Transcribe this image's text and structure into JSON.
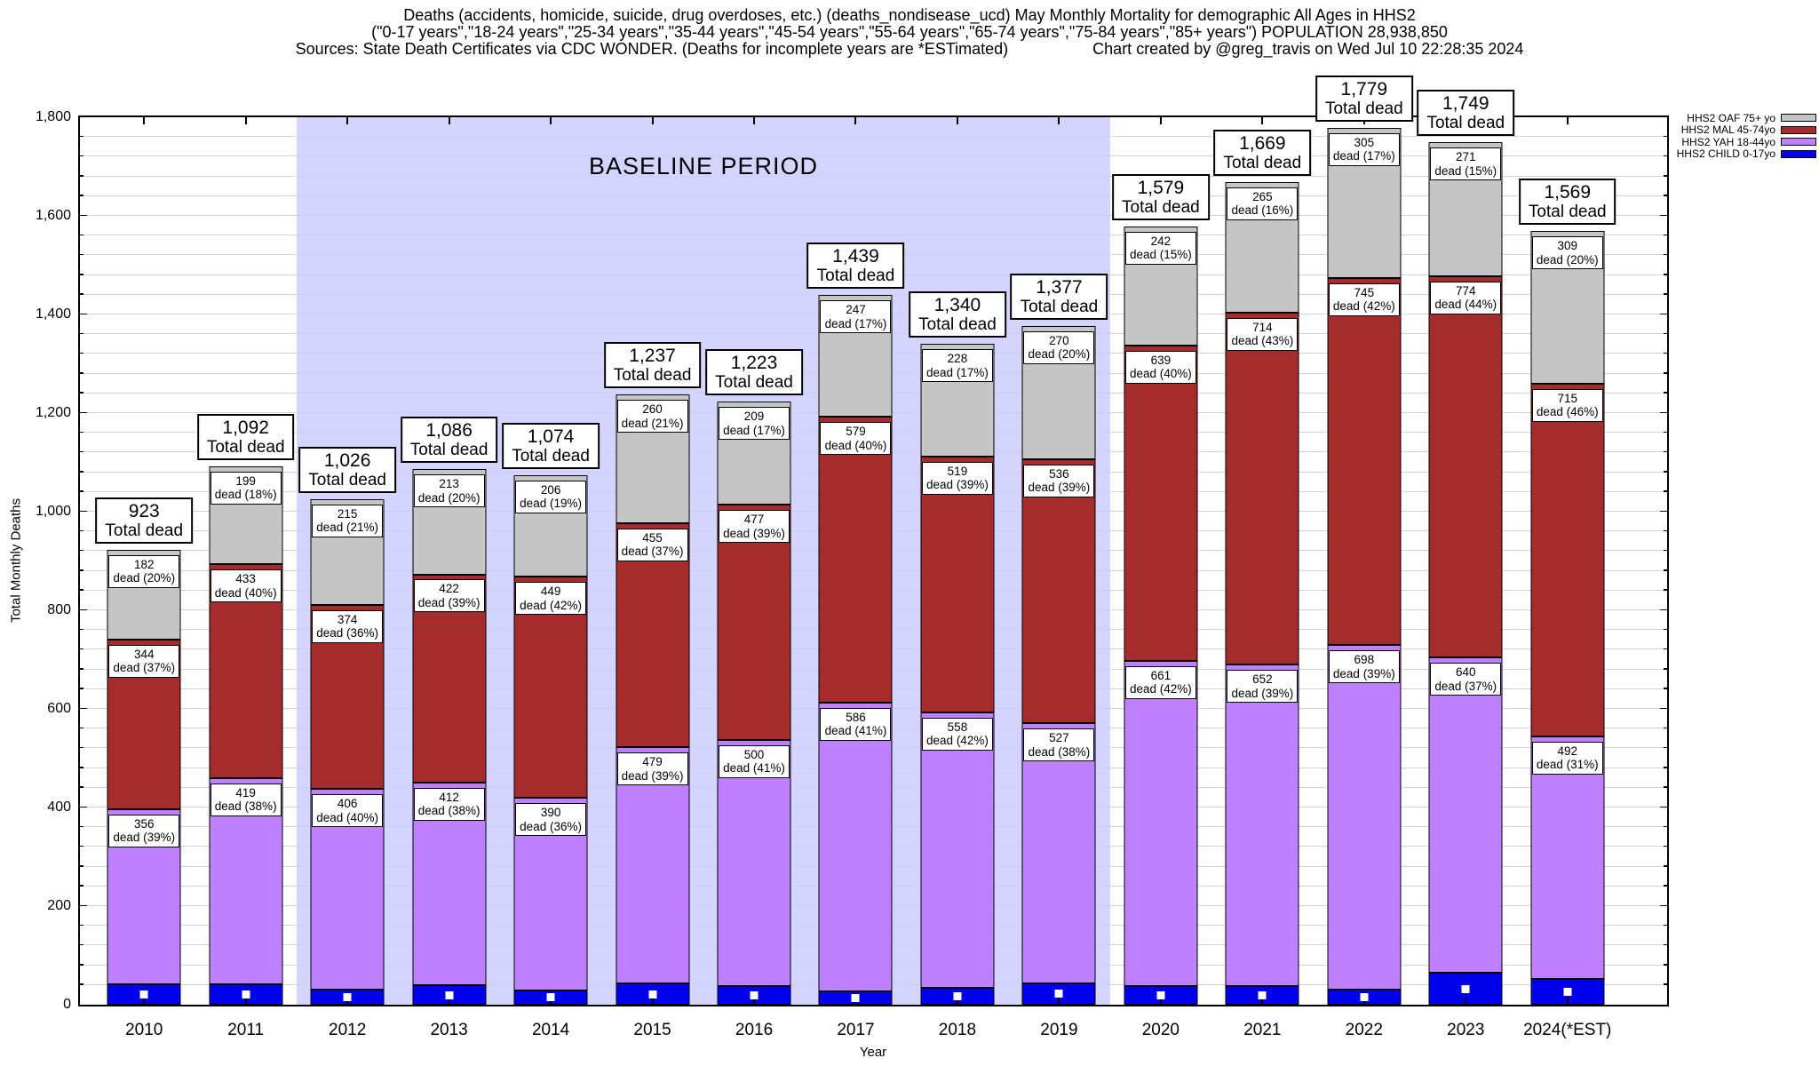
{
  "header": {
    "title_line1": "Deaths (accidents, homicide, suicide, drug overdoses, etc.) (deaths_nondisease_ucd) May Monthly Mortality for demographic All Ages in HHS2",
    "title_line2": "(\"0-17 years\",\"18-24 years\",\"25-34 years\",\"35-44 years\",\"45-54 years\",\"55-64 years\",\"65-74 years\",\"75-84 years\",\"85+ years\") POPULATION 28,938,850",
    "title_line3_left": "Sources: State Death Certificates via CDC WONDER. (Deaths for incomplete years are *ESTimated)",
    "title_line3_right": "Chart created by @greg_travis on Wed Jul 10 22:28:35 2024"
  },
  "axes": {
    "y_title": "Total Monthly Deaths",
    "x_title": "Year",
    "y_ticks": [
      "0",
      "200",
      "400",
      "600",
      "800",
      "1,000",
      "1,200",
      "1,400",
      "1,600",
      "1,800"
    ]
  },
  "baseline": {
    "label": "BASELINE PERIOD"
  },
  "legend": {
    "items": [
      {
        "label": "HHS2 OAF 75+ yo",
        "color": "#c5c5c5"
      },
      {
        "label": "HHS2 MAL 45-74yo",
        "color": "#a52c2c"
      },
      {
        "label": "HHS2 YAH 18-44yo",
        "color": "#bf80ff"
      },
      {
        "label": "HHS2 CHILD 0-17yo",
        "color": "#0000ee"
      }
    ]
  },
  "chart_data": {
    "type": "bar",
    "stacked": true,
    "title": "Deaths (accidents, homicide, suicide, drug overdoses, etc.) May Monthly Mortality, All Ages, HHS2",
    "xlabel": "Year",
    "ylabel": "Total Monthly Deaths",
    "ylim": [
      0,
      1800
    ],
    "ytick_step": 200,
    "minor_grid_step": 40,
    "grid": true,
    "legend_position": "top-right",
    "baseline_period": {
      "from": "2012",
      "to": "2019",
      "label": "BASELINE PERIOD"
    },
    "x": [
      "2010",
      "2011",
      "2012",
      "2013",
      "2014",
      "2015",
      "2016",
      "2017",
      "2018",
      "2019",
      "2020",
      "2021",
      "2022",
      "2023",
      "2024(*EST)"
    ],
    "series": [
      {
        "name": "HHS2 CHILD 0-17yo",
        "color": "#0000ee",
        "marker": "white-square",
        "derived_from_stack": true,
        "values": [
          41,
          41,
          31,
          39,
          29,
          43,
          37,
          27,
          35,
          44,
          37,
          38,
          31,
          64,
          53
        ]
      },
      {
        "name": "HHS2 YAH 18-44yo",
        "color": "#bf80ff",
        "values": [
          356,
          419,
          406,
          412,
          390,
          479,
          500,
          586,
          558,
          527,
          661,
          652,
          698,
          640,
          492
        ],
        "pct": [
          39,
          38,
          40,
          38,
          36,
          39,
          41,
          41,
          42,
          38,
          42,
          39,
          39,
          37,
          31
        ]
      },
      {
        "name": "HHS2 MAL 45-74yo",
        "color": "#a52c2c",
        "values": [
          344,
          433,
          374,
          422,
          449,
          455,
          477,
          579,
          519,
          536,
          639,
          714,
          745,
          774,
          715
        ],
        "pct": [
          37,
          40,
          36,
          39,
          42,
          37,
          39,
          40,
          39,
          39,
          40,
          43,
          42,
          44,
          46
        ]
      },
      {
        "name": "HHS2 OAF 75+ yo",
        "color": "#c5c5c5",
        "values": [
          182,
          199,
          215,
          213,
          206,
          260,
          209,
          247,
          228,
          270,
          242,
          265,
          305,
          271,
          309
        ],
        "pct": [
          20,
          18,
          21,
          20,
          19,
          21,
          17,
          17,
          17,
          20,
          15,
          16,
          17,
          15,
          20
        ]
      }
    ],
    "totals": [
      923,
      1092,
      1026,
      1086,
      1074,
      1237,
      1223,
      1439,
      1340,
      1377,
      1579,
      1669,
      1779,
      1749,
      1569
    ],
    "total_labels": [
      "923",
      "1,092",
      "1,026",
      "1,086",
      "1,074",
      "1,237",
      "1,223",
      "1,439",
      "1,340",
      "1,377",
      "1,579",
      "1,669",
      "1,779",
      "1,749",
      "1,569"
    ],
    "segment_label_word": "dead",
    "total_label_word": "Total dead"
  }
}
